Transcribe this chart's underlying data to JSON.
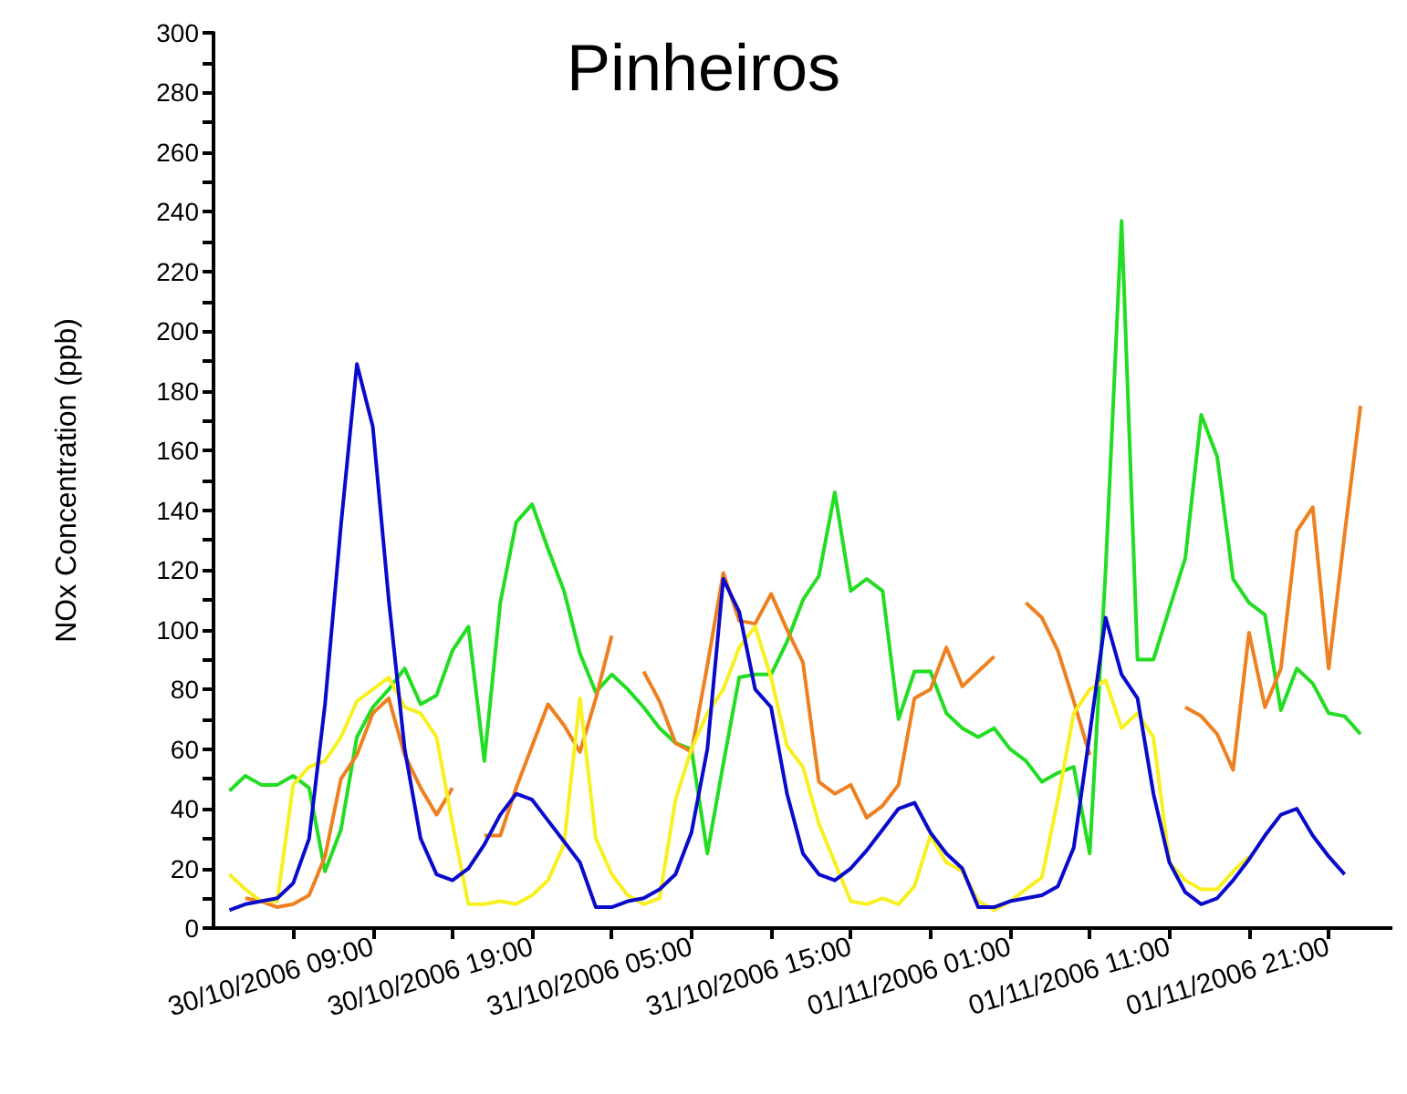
{
  "chart_data": {
    "type": "line",
    "title": "Pinheiros",
    "ylabel": "NOx Concentration (ppb)",
    "x": [
      "2006-10-30T00:00",
      "2006-10-30T01:00",
      "2006-10-30T02:00",
      "2006-10-30T03:00",
      "2006-10-30T04:00",
      "2006-10-30T05:00",
      "2006-10-30T06:00",
      "2006-10-30T07:00",
      "2006-10-30T08:00",
      "2006-10-30T09:00",
      "2006-10-30T10:00",
      "2006-10-30T11:00",
      "2006-10-30T12:00",
      "2006-10-30T13:00",
      "2006-10-30T14:00",
      "2006-10-30T15:00",
      "2006-10-30T16:00",
      "2006-10-30T17:00",
      "2006-10-30T18:00",
      "2006-10-30T19:00",
      "2006-10-30T20:00",
      "2006-10-30T21:00",
      "2006-10-30T22:00",
      "2006-10-30T23:00",
      "2006-10-31T00:00",
      "2006-10-31T01:00",
      "2006-10-31T02:00",
      "2006-10-31T03:00",
      "2006-10-31T04:00",
      "2006-10-31T05:00",
      "2006-10-31T06:00",
      "2006-10-31T07:00",
      "2006-10-31T08:00",
      "2006-10-31T09:00",
      "2006-10-31T10:00",
      "2006-10-31T11:00",
      "2006-10-31T12:00",
      "2006-10-31T13:00",
      "2006-10-31T14:00",
      "2006-10-31T15:00",
      "2006-10-31T16:00",
      "2006-10-31T17:00",
      "2006-10-31T18:00",
      "2006-10-31T19:00",
      "2006-10-31T20:00",
      "2006-10-31T21:00",
      "2006-10-31T22:00",
      "2006-10-31T23:00",
      "2006-11-01T00:00",
      "2006-11-01T01:00",
      "2006-11-01T02:00",
      "2006-11-01T03:00",
      "2006-11-01T04:00",
      "2006-11-01T05:00",
      "2006-11-01T06:00",
      "2006-11-01T07:00",
      "2006-11-01T08:00",
      "2006-11-01T09:00",
      "2006-11-01T10:00",
      "2006-11-01T11:00",
      "2006-11-01T12:00",
      "2006-11-01T13:00",
      "2006-11-01T14:00",
      "2006-11-01T15:00",
      "2006-11-01T16:00",
      "2006-11-01T17:00",
      "2006-11-01T18:00",
      "2006-11-01T19:00",
      "2006-11-01T20:00",
      "2006-11-01T21:00",
      "2006-11-01T22:00",
      "2006-11-01T23:00"
    ],
    "series": [
      {
        "color": "#22dd22",
        "values": [
          46,
          51,
          48,
          48,
          51,
          47,
          19,
          33,
          64,
          74,
          80,
          87,
          75,
          78,
          93,
          101,
          56,
          109,
          136,
          142,
          127,
          113,
          92,
          79,
          85,
          80,
          74,
          67,
          62,
          60,
          25,
          55,
          84,
          85,
          85,
          96,
          110,
          118,
          146,
          113,
          117,
          113,
          70,
          86,
          86,
          72,
          67,
          64,
          67,
          60,
          56,
          49,
          52,
          54,
          25,
          120,
          237,
          90,
          90,
          107,
          124,
          172,
          158,
          117,
          109,
          105,
          73,
          87,
          82,
          72,
          71,
          65
        ]
      },
      {
        "color": "#ee8020",
        "values": [
          null,
          10,
          9,
          7,
          8,
          11,
          24,
          50,
          58,
          72,
          77,
          58,
          47,
          38,
          47,
          null,
          31,
          31,
          47,
          61,
          75,
          68,
          59,
          77,
          98,
          null,
          86,
          76,
          62,
          59,
          88,
          119,
          103,
          102,
          112,
          100,
          89,
          49,
          45,
          48,
          37,
          41,
          48,
          77,
          80,
          94,
          81,
          86,
          91,
          null,
          109,
          104,
          93,
          76,
          58,
          null,
          null,
          null,
          null,
          null,
          74,
          71,
          65,
          53,
          99,
          74,
          87,
          133,
          141,
          87,
          132,
          175
        ]
      },
      {
        "color": "#f8f020",
        "values": [
          18,
          13,
          9,
          9,
          48,
          54,
          56,
          64,
          76,
          80,
          84,
          74,
          72,
          64,
          35,
          8,
          8,
          9,
          8,
          11,
          16,
          28,
          77,
          30,
          18,
          11,
          8,
          10,
          43,
          60,
          72,
          80,
          94,
          101,
          84,
          61,
          54,
          35,
          22,
          9,
          8,
          10,
          8,
          14,
          31,
          22,
          19,
          9,
          6,
          9,
          13,
          17,
          43,
          72,
          80,
          83,
          67,
          72,
          64,
          22,
          16,
          13,
          13,
          19,
          24,
          null,
          null,
          null,
          null,
          null,
          null,
          null
        ]
      },
      {
        "color": "#0a0acc",
        "values": [
          6,
          8,
          9,
          10,
          15,
          30,
          75,
          135,
          189,
          168,
          110,
          60,
          30,
          18,
          16,
          20,
          28,
          38,
          45,
          43,
          36,
          29,
          22,
          7,
          7,
          9,
          10,
          13,
          18,
          32,
          60,
          117,
          106,
          80,
          74,
          45,
          25,
          18,
          16,
          20,
          26,
          33,
          40,
          42,
          32,
          25,
          20,
          7,
          7,
          9,
          10,
          11,
          14,
          27,
          65,
          104,
          85,
          77,
          45,
          22,
          12,
          8,
          10,
          16,
          23,
          31,
          38,
          40,
          31,
          24,
          18,
          null
        ]
      }
    ],
    "xlim": [
      "2006-10-29T23:00",
      "2006-11-02T01:00"
    ],
    "xticks": [
      {
        "value": "2006-10-30T04:00",
        "label": null
      },
      {
        "value": "2006-10-30T09:00",
        "label": "30/10/2006 09:00"
      },
      {
        "value": "2006-10-30T14:00",
        "label": null
      },
      {
        "value": "2006-10-30T19:00",
        "label": "30/10/2006 19:00"
      },
      {
        "value": "2006-10-31T00:00",
        "label": null
      },
      {
        "value": "2006-10-31T05:00",
        "label": "31/10/2006 05:00"
      },
      {
        "value": "2006-10-31T10:00",
        "label": null
      },
      {
        "value": "2006-10-31T15:00",
        "label": "31/10/2006 15:00"
      },
      {
        "value": "2006-10-31T20:00",
        "label": null
      },
      {
        "value": "2006-11-01T01:00",
        "label": "01/11/2006 01:00"
      },
      {
        "value": "2006-11-01T06:00",
        "label": null
      },
      {
        "value": "2006-11-01T11:00",
        "label": "01/11/2006 11:00"
      },
      {
        "value": "2006-11-01T16:00",
        "label": null
      },
      {
        "value": "2006-11-01T21:00",
        "label": "01/11/2006 21:00"
      }
    ],
    "ylim": [
      0,
      300
    ],
    "yticks": [
      0,
      {
        "value": 10,
        "label": null
      },
      20,
      {
        "value": 30,
        "label": null
      },
      40,
      {
        "value": 50,
        "label": null
      },
      60,
      {
        "value": 70,
        "label": null
      },
      80,
      {
        "value": 90,
        "label": null
      },
      100,
      {
        "value": 110,
        "label": null
      },
      120,
      {
        "value": 130,
        "label": null
      },
      140,
      {
        "value": 150,
        "label": null
      },
      160,
      {
        "value": 170,
        "label": null
      },
      180,
      {
        "value": 190,
        "label": null
      },
      200,
      {
        "value": 210,
        "label": null
      },
      220,
      {
        "value": 230,
        "label": null
      },
      240,
      {
        "value": 250,
        "label": null
      },
      260,
      {
        "value": 270,
        "label": null
      },
      280,
      {
        "value": 290,
        "label": null
      },
      300
    ],
    "grid": false
  }
}
